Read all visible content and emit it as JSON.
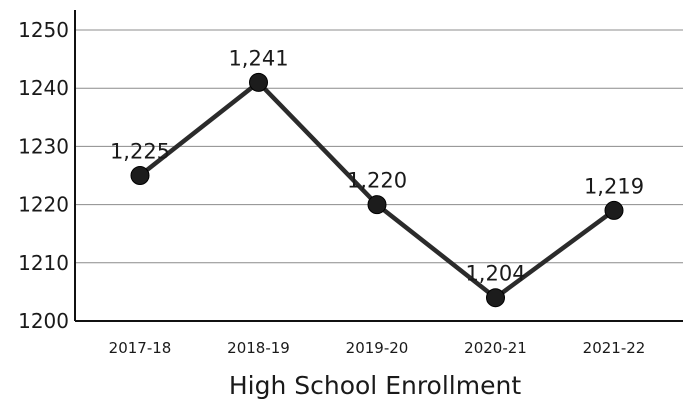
{
  "chart_data": {
    "type": "line",
    "categories": [
      "2017-18",
      "2018-19",
      "2019-20",
      "2020-21",
      "2021-22"
    ],
    "series": [
      {
        "values": [
          1225,
          1241,
          1220,
          1204,
          1219
        ],
        "labels": [
          "1,225",
          "1,241",
          "1,220",
          "1,204",
          "1,219"
        ]
      }
    ],
    "xlabel": "High School Enrollment",
    "ylabel": "",
    "ylim": [
      1200,
      1250
    ],
    "yticks": [
      "1200",
      "1210",
      "1220",
      "1230",
      "1240",
      "1250"
    ],
    "grid": "horizontal",
    "colors": {
      "line": "#2b2b2b",
      "marker": "#1c1c1c",
      "grid": "#8c8c8c",
      "axis": "#111111"
    }
  }
}
